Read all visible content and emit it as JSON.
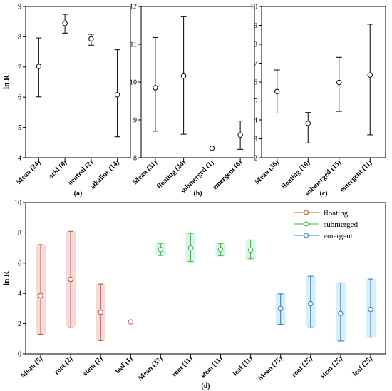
{
  "chart_data": [
    {
      "type": "scatter",
      "panel_label": "(a)",
      "ylabel": "ln R",
      "ylim": [
        4,
        9
      ],
      "yticks": [
        4,
        5,
        6,
        7,
        8,
        9
      ],
      "grid": false,
      "categories": [
        "Mean (24)",
        "acid (8)",
        "neutral (2)",
        "alkaline (14)"
      ],
      "points": [
        {
          "mean": 7.02,
          "low": 6.01,
          "high": 7.96
        },
        {
          "mean": 8.44,
          "low": 8.12,
          "high": 8.74
        },
        {
          "mean": 7.93,
          "low": 7.72,
          "high": 8.08
        },
        {
          "mean": 6.08,
          "low": 4.69,
          "high": 7.57
        }
      ]
    },
    {
      "type": "scatter",
      "panel_label": "(b)",
      "ylim": [
        8,
        12
      ],
      "yticks": [
        8,
        9,
        10,
        11,
        12
      ],
      "grid": false,
      "categories": [
        "Mean (31)",
        "floating (24)",
        "submerged (1)",
        "emergent (6)"
      ],
      "points": [
        {
          "mean": 9.85,
          "low": 8.7,
          "high": 11.18
        },
        {
          "mean": 10.16,
          "low": 8.62,
          "high": 11.73
        },
        {
          "mean": 8.25,
          "low": null,
          "high": null
        },
        {
          "mean": 8.6,
          "low": 8.22,
          "high": 8.97
        }
      ]
    },
    {
      "type": "scatter",
      "panel_label": "(c)",
      "ylim": [
        2,
        10
      ],
      "yticks": [
        2,
        3,
        4,
        5,
        6,
        7,
        8,
        9,
        10
      ],
      "grid": false,
      "categories": [
        "Mean (36)",
        "floating (10)",
        "submerged (15)",
        "emergent (11)"
      ],
      "points": [
        {
          "mean": 5.5,
          "low": 4.36,
          "high": 6.64
        },
        {
          "mean": 3.82,
          "low": 2.78,
          "high": 4.39
        },
        {
          "mean": 5.98,
          "low": 4.45,
          "high": 7.31
        },
        {
          "mean": 6.37,
          "low": 3.21,
          "high": 9.06
        }
      ]
    },
    {
      "type": "scatter",
      "panel_label": "(d)",
      "ylabel": "ln R",
      "ylim": [
        0,
        10
      ],
      "yticks": [
        0,
        2,
        4,
        6,
        8,
        10
      ],
      "grid": false,
      "legend_position": "top-right",
      "categories": [
        "Mean (5)",
        "root (2)",
        "stem (2)",
        "leaf (1)",
        "Mean (33)",
        "root (11)",
        "stem (11)",
        "leaf (11)",
        "Mean (75)",
        "root (25)",
        "stem (25)",
        "leaf (25)"
      ],
      "series": [
        {
          "name": "floating",
          "color": "#b5512f",
          "shade": "#f6dada",
          "start_index": 0,
          "points": [
            {
              "mean": 3.85,
              "low": 1.3,
              "high": 7.22
            },
            {
              "mean": 4.93,
              "low": 1.75,
              "high": 8.1
            },
            {
              "mean": 2.75,
              "low": 0.88,
              "high": 4.62
            },
            {
              "mean": 2.12,
              "low": null,
              "high": null
            }
          ]
        },
        {
          "name": "submerged",
          "color": "#3dbb2f",
          "shade": "#d6f5ee",
          "start_index": 4,
          "points": [
            {
              "mean": 6.9,
              "low": 6.5,
              "high": 7.3
            },
            {
              "mean": 7.0,
              "low": 6.1,
              "high": 7.97
            },
            {
              "mean": 6.9,
              "low": 6.48,
              "high": 7.3
            },
            {
              "mean": 6.87,
              "low": 6.28,
              "high": 7.53
            }
          ]
        },
        {
          "name": "emergent",
          "color": "#2e75c7",
          "shade": "#d6f0fb",
          "start_index": 8,
          "points": [
            {
              "mean": 3.0,
              "low": 1.95,
              "high": 3.97
            },
            {
              "mean": 3.32,
              "low": 1.75,
              "high": 5.14
            },
            {
              "mean": 2.68,
              "low": 0.85,
              "high": 4.7
            },
            {
              "mean": 2.95,
              "low": 1.1,
              "high": 4.95
            }
          ]
        }
      ]
    }
  ]
}
